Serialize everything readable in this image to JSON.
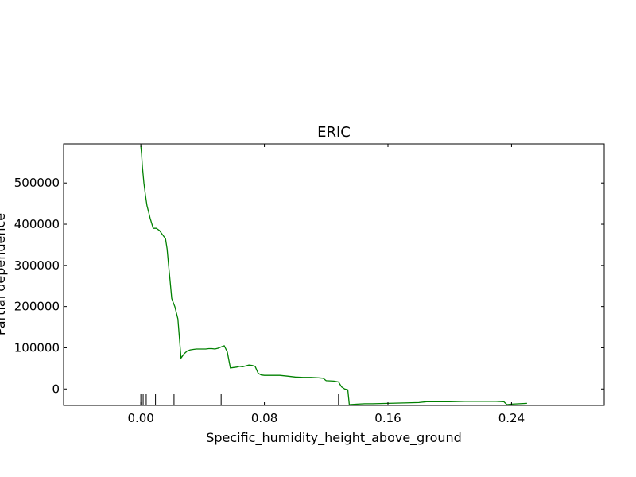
{
  "chart_data": {
    "type": "line",
    "title": "ERIC",
    "xlabel": "Specific_humidity_height_above_ground",
    "ylabel": "Partial dependence",
    "xlim": [
      -0.05,
      0.3
    ],
    "ylim": [
      -40000,
      595000
    ],
    "xticks": [
      0.0,
      0.08,
      0.16,
      0.24
    ],
    "xtick_labels": [
      "0.00",
      "0.08",
      "0.16",
      "0.24"
    ],
    "yticks": [
      0,
      100000,
      200000,
      300000,
      400000,
      500000
    ],
    "ytick_labels": [
      "0",
      "100000",
      "200000",
      "300000",
      "400000",
      "500000"
    ],
    "grid": false,
    "line_color": "#008000",
    "series": [
      {
        "x": [
          0.0,
          0.0005,
          0.001,
          0.002,
          0.003,
          0.004,
          0.005,
          0.006,
          0.008,
          0.01,
          0.012,
          0.014,
          0.016,
          0.017,
          0.018,
          0.019,
          0.02,
          0.021,
          0.022,
          0.024,
          0.026,
          0.028,
          0.03,
          0.032,
          0.034,
          0.036,
          0.038,
          0.04,
          0.042,
          0.044,
          0.046,
          0.048,
          0.05,
          0.052,
          0.054,
          0.056,
          0.058,
          0.06,
          0.062,
          0.064,
          0.066,
          0.068,
          0.07,
          0.072,
          0.074,
          0.076,
          0.078,
          0.08,
          0.085,
          0.09,
          0.095,
          0.1,
          0.105,
          0.11,
          0.115,
          0.118,
          0.12,
          0.125,
          0.128,
          0.13,
          0.132,
          0.134,
          0.135,
          0.14,
          0.145,
          0.15,
          0.16,
          0.17,
          0.18,
          0.185,
          0.19,
          0.2,
          0.21,
          0.22,
          0.23,
          0.235,
          0.237,
          0.24,
          0.245,
          0.25
        ],
        "y": [
          590000,
          570000,
          540000,
          500000,
          470000,
          445000,
          430000,
          415000,
          390000,
          390000,
          385000,
          375000,
          365000,
          340000,
          300000,
          260000,
          220000,
          210000,
          200000,
          170000,
          75000,
          85000,
          92000,
          95000,
          96000,
          97000,
          97000,
          97000,
          97000,
          98000,
          98000,
          97000,
          99000,
          102000,
          105000,
          90000,
          51000,
          52000,
          53000,
          55000,
          54000,
          56000,
          58000,
          57000,
          55000,
          38000,
          34000,
          33000,
          33000,
          33000,
          31000,
          29000,
          28000,
          28000,
          27000,
          26000,
          20000,
          19000,
          17000,
          5000,
          0,
          -2000,
          -38000,
          -37000,
          -36000,
          -36000,
          -35000,
          -34000,
          -33000,
          -31000,
          -31000,
          -31000,
          -30000,
          -30000,
          -30000,
          -31000,
          -38000,
          -37000,
          -36000,
          -35000
        ]
      }
    ],
    "rug_x": [
      0.0,
      0.0015,
      0.0035,
      0.0095,
      0.0215,
      0.052,
      0.128
    ]
  }
}
